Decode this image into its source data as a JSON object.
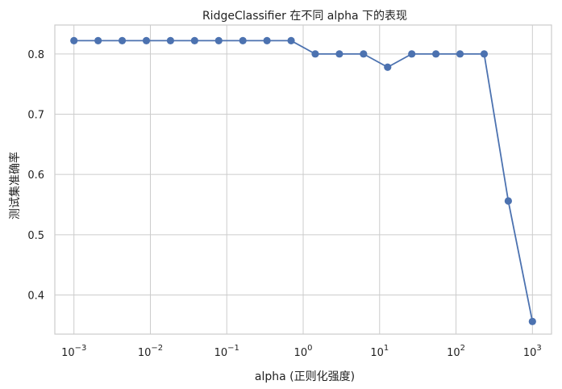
{
  "chart_data": {
    "type": "line",
    "title": "RidgeClassifier 在不同 alpha 下的表现",
    "xlabel": "alpha (正则化强度)",
    "ylabel": "测试集准确率",
    "xscale": "log",
    "xlim": [
      0.000562,
      1778
    ],
    "ylim": [
      0.335,
      0.848
    ],
    "grid": true,
    "x_ticks": [
      {
        "base": "10",
        "exp": "−3",
        "value": 0.001
      },
      {
        "base": "10",
        "exp": "−2",
        "value": 0.01
      },
      {
        "base": "10",
        "exp": "−1",
        "value": 0.1
      },
      {
        "base": "10",
        "exp": "0",
        "value": 1
      },
      {
        "base": "10",
        "exp": "1",
        "value": 10
      },
      {
        "base": "10",
        "exp": "2",
        "value": 100
      },
      {
        "base": "10",
        "exp": "3",
        "value": 1000
      }
    ],
    "y_ticks": [
      "0.4",
      "0.5",
      "0.6",
      "0.7",
      "0.8"
    ],
    "color": "#4c72b0",
    "series": [
      {
        "x": [
          0.001,
          0.00207,
          0.00428,
          0.00886,
          0.01833,
          0.03793,
          0.07848,
          0.16238,
          0.33598,
          0.69519,
          1.43845,
          2.97635,
          6.15848,
          12.74275,
          26.36651,
          54.55595,
          112.8838,
          233.5721,
          483.293,
          1000
        ],
        "values": [
          0.822,
          0.822,
          0.822,
          0.822,
          0.822,
          0.822,
          0.822,
          0.822,
          0.822,
          0.822,
          0.8,
          0.8,
          0.8,
          0.778,
          0.8,
          0.8,
          0.8,
          0.8,
          0.556,
          0.356
        ]
      }
    ]
  }
}
